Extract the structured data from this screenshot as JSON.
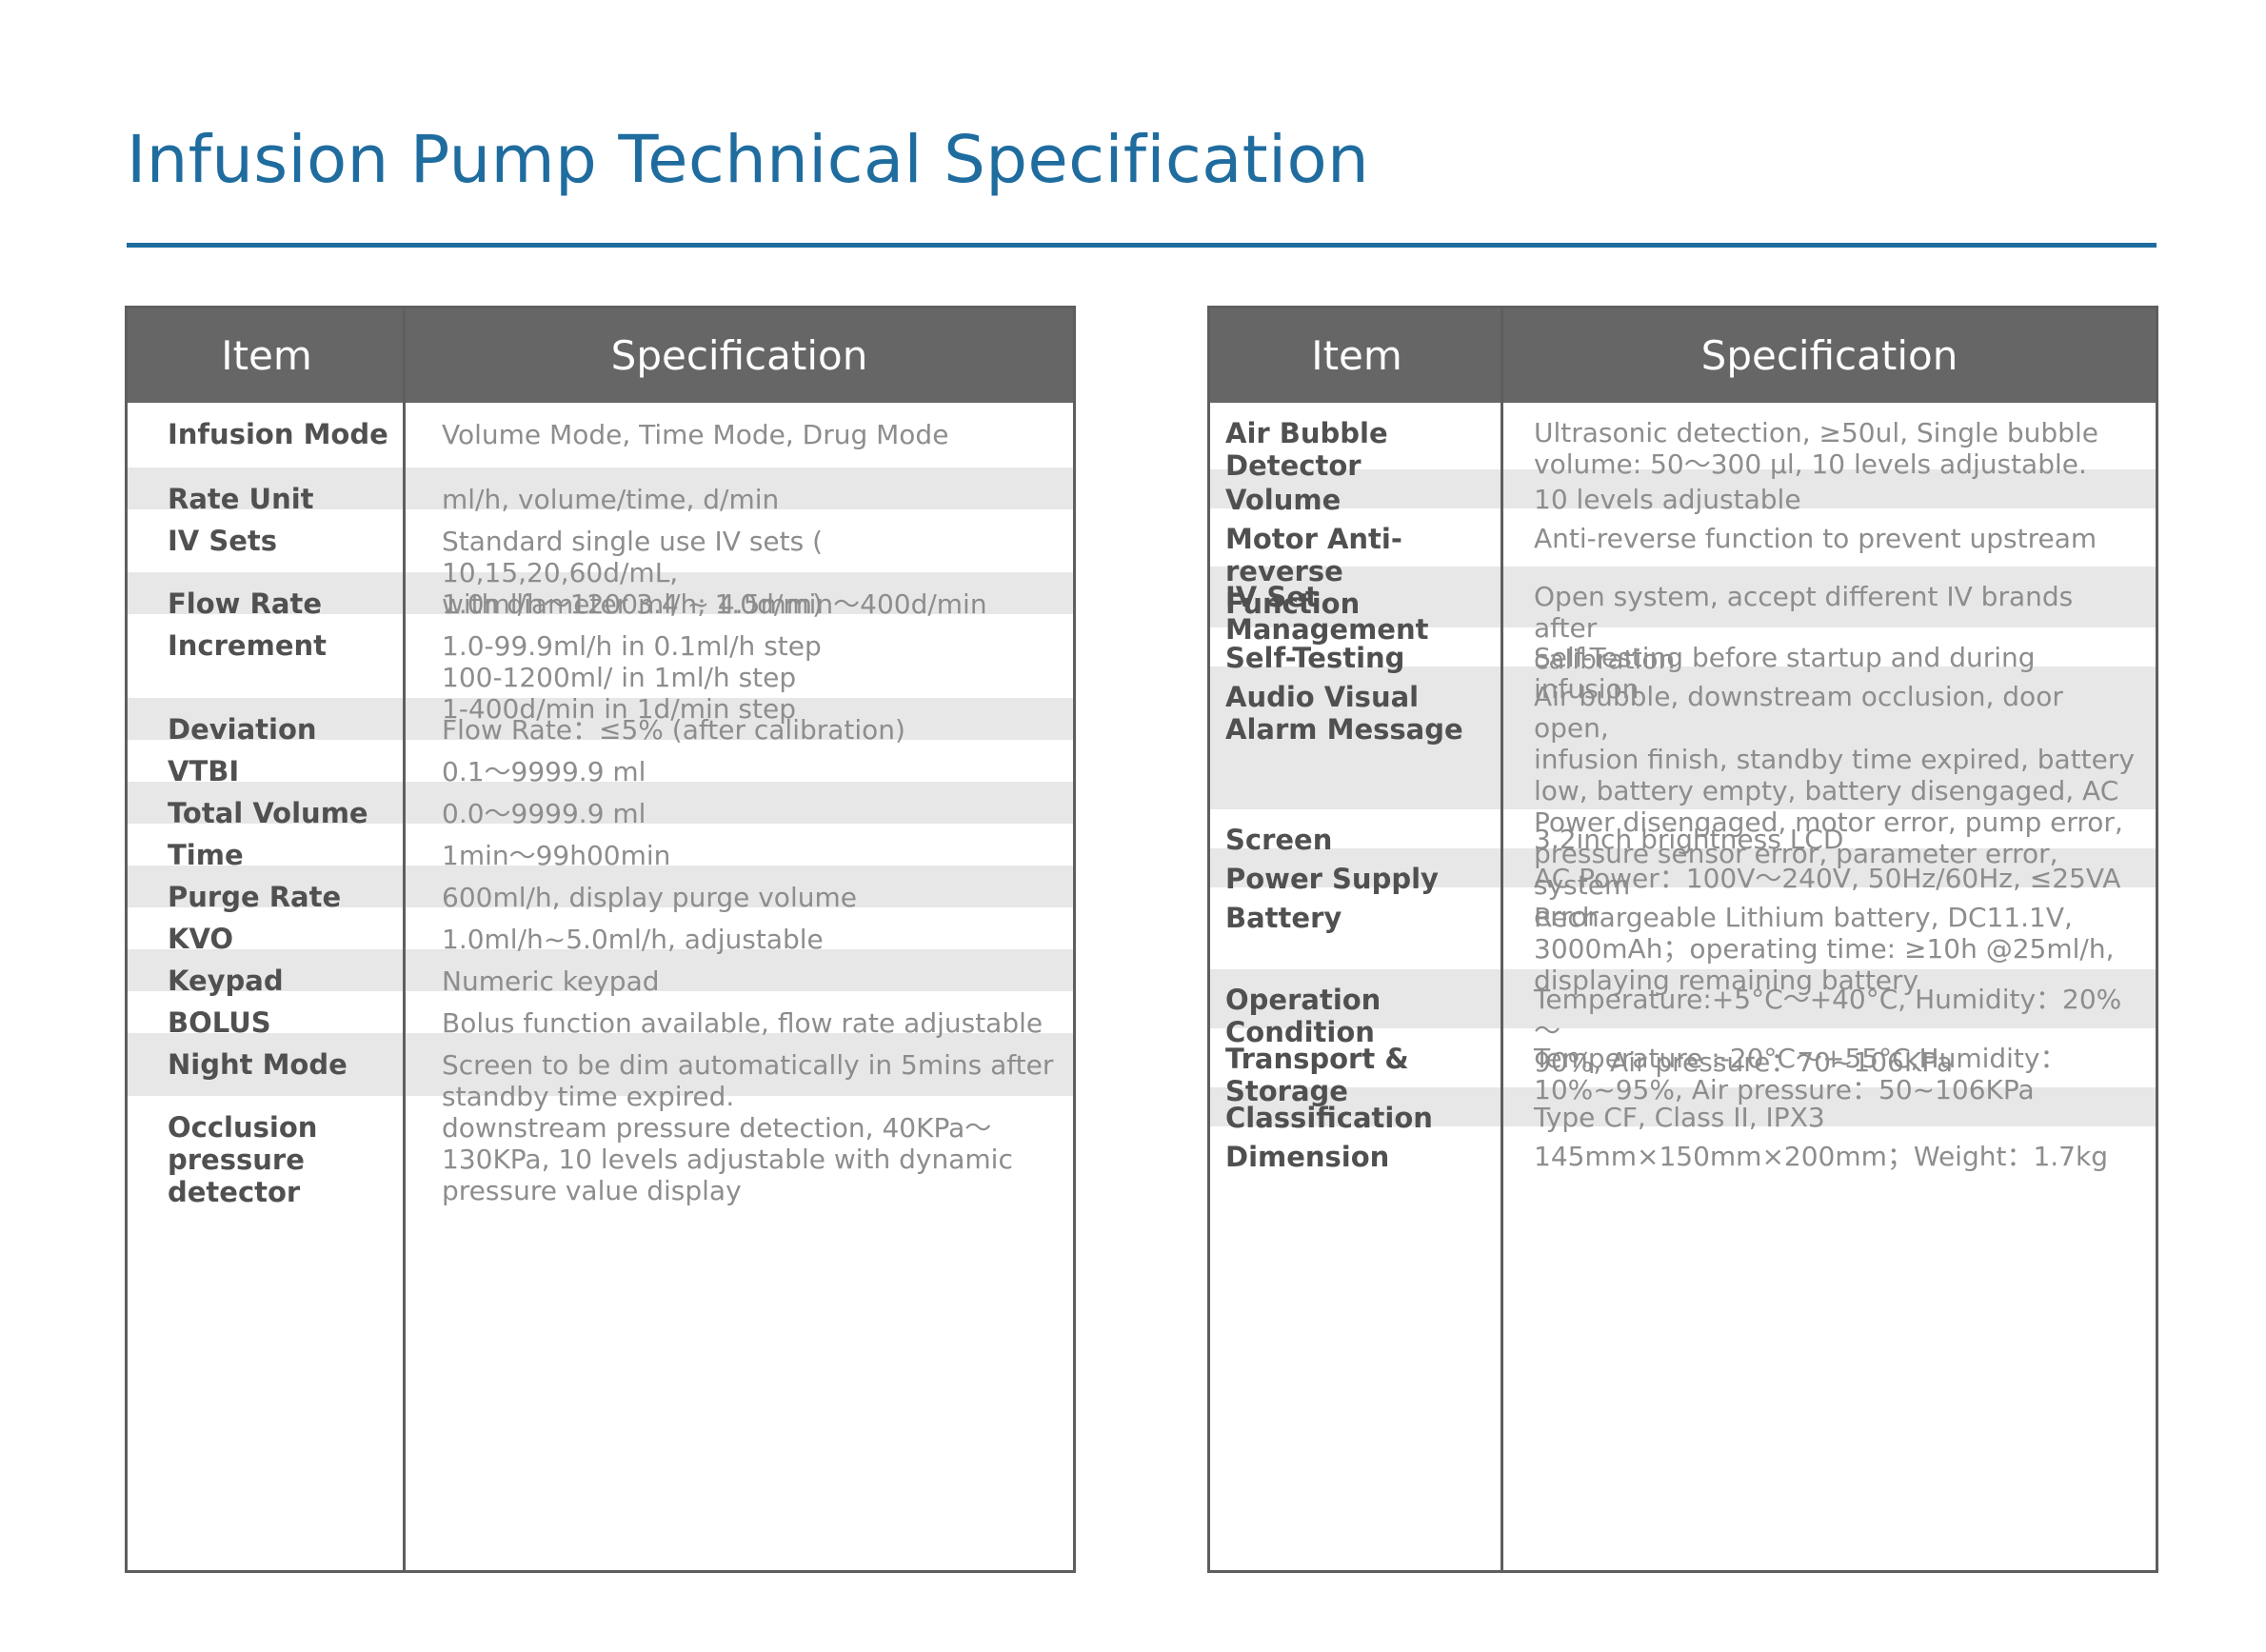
{
  "page": {
    "title": "Infusion Pump Technical Specification"
  },
  "left_table": {
    "headers": {
      "item": "Item",
      "spec": "Specification"
    },
    "rows": [
      {
        "item": "Infusion Mode",
        "spec": [
          "Volume Mode, Time Mode, Drug Mode"
        ]
      },
      {
        "item": "Rate Unit",
        "spec": [
          "ml/h, volume/time, d/min"
        ]
      },
      {
        "item": "IV Sets",
        "spec": [
          "Standard single use IV sets ( 10,15,20,60d/mL,",
          "with diameter 3.4 ~ 4.5mm)"
        ]
      },
      {
        "item": "Flow Rate",
        "spec": [
          "1.0ml/h～1200ml/h; 1.0d/min～400d/min"
        ]
      },
      {
        "item": "Increment",
        "spec": [
          "1.0-99.9ml/h in 0.1ml/h step",
          "100-1200ml/ in 1ml/h step",
          "1-400d/min in 1d/min step"
        ]
      },
      {
        "item": "Deviation",
        "spec": [
          "Flow Rate：≤5% (after calibration)"
        ]
      },
      {
        "item": "VTBI",
        "spec": [
          "0.1～9999.9 ml"
        ]
      },
      {
        "item": "Total Volume",
        "spec": [
          "0.0～9999.9 ml"
        ]
      },
      {
        "item": "Time",
        "spec": [
          "1min～99h00min"
        ]
      },
      {
        "item": "Purge Rate",
        "spec": [
          "600ml/h, display purge volume"
        ]
      },
      {
        "item": "KVO",
        "spec": [
          "1.0ml/h~5.0ml/h, adjustable"
        ]
      },
      {
        "item": "Keypad",
        "spec": [
          "Numeric keypad"
        ]
      },
      {
        "item": "BOLUS",
        "spec": [
          "Bolus function available, flow rate adjustable"
        ]
      },
      {
        "item": "Night Mode",
        "spec": [
          "Screen to be dim automatically in 5mins after",
          "standby time expired."
        ]
      },
      {
        "item": "Occlusion pressure detector",
        "spec": [
          "downstream pressure detection,  40KPa～",
          "130KPa, 10 levels adjustable with dynamic",
          "pressure value display"
        ]
      }
    ]
  },
  "right_table": {
    "headers": {
      "item": "Item",
      "spec": "Specification"
    },
    "rows": [
      {
        "item": "Air Bubble Detector",
        "spec": [
          "Ultrasonic detection, ≥50ul, Single bubble",
          "volume: 50～300 μl, 10 levels adjustable."
        ]
      },
      {
        "item": "Volume",
        "spec": [
          "10 levels adjustable"
        ]
      },
      {
        "item": "Motor Anti-reverse Function",
        "spec": [
          "Anti-reverse function to prevent upstream"
        ]
      },
      {
        "item": "IV Set Management",
        "spec": [
          "Open system, accept different IV brands after",
          "calibration"
        ]
      },
      {
        "item": "Self-Testing",
        "spec": [
          "Self-Testing before startup and during infusion"
        ]
      },
      {
        "item": "Audio Visual Alarm Message",
        "spec": [
          "Air bubble, downstream occlusion, door open,",
          "infusion finish, standby time expired, battery",
          "low, battery empty, battery disengaged, AC",
          "Power disengaged, motor error, pump error,",
          "pressure sensor error, parameter error, system",
          "error"
        ]
      },
      {
        "item": "Screen",
        "spec": [
          "3.2inch brightness LCD"
        ]
      },
      {
        "item": "Power Supply",
        "spec": [
          "AC Power：100V～240V, 50Hz/60Hz, ≤25VA"
        ]
      },
      {
        "item": "Battery",
        "spec": [
          "Rechargeable Lithium battery, DC11.1V,",
          "3000mAh；operating time: ≥10h @25ml/h,",
          "displaying remaining battery"
        ]
      },
      {
        "item": "Operation Condition",
        "spec": [
          "Temperature:+5°C～+40°C, Humidity：20%～",
          "90%, Air pressure：70~106KPa"
        ]
      },
      {
        "item": "Transport & Storage",
        "spec": [
          "Temperature :-20°C～+55°C,Humidity：",
          "10%~95%, Air pressure：50~106KPa"
        ]
      },
      {
        "item": "Classification",
        "spec": [
          "Type CF, Class II, IPX3"
        ]
      },
      {
        "item": "Dimension",
        "spec": [
          "145mm×150mm×200mm；Weight：1.7kg"
        ]
      }
    ]
  }
}
